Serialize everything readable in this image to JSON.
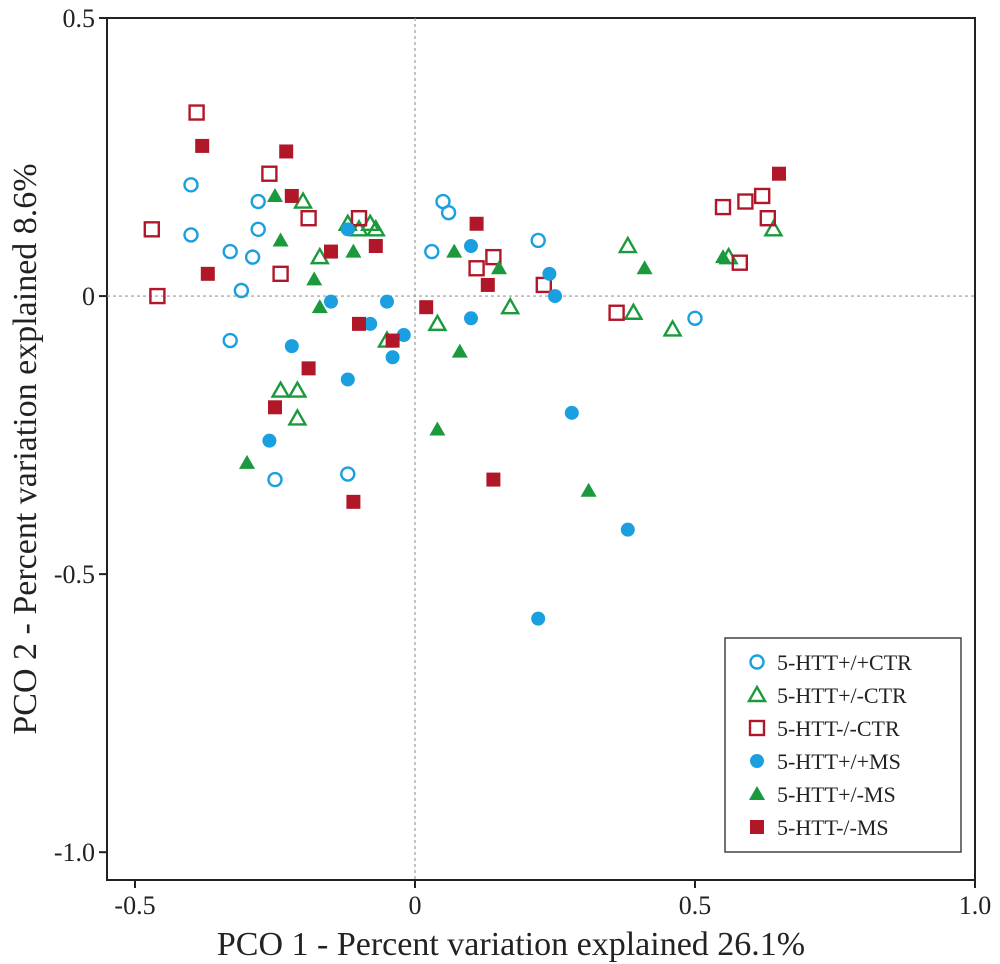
{
  "chart_data": {
    "type": "scatter",
    "title": "",
    "xlabel": "PCO 1 - Percent variation explained 26.1%",
    "ylabel": "PCO 2 - Percent variation explained 8.6%",
    "xlim": [
      -0.55,
      1.0
    ],
    "ylim": [
      -1.05,
      0.5
    ],
    "xticks": [
      -0.5,
      0,
      0.5,
      1.0
    ],
    "xtick_labels": [
      "-0.5",
      "0",
      "0.5",
      "1.0"
    ],
    "yticks": [
      0.5,
      0,
      -0.5,
      -1.0
    ],
    "ytick_labels": [
      "0.5",
      "0",
      "-0.5",
      "-1.0"
    ],
    "reference_lines": {
      "x": 0,
      "y": 0
    },
    "legend_position": "bottom-right",
    "series": [
      {
        "name": "5-HTT+/+CTR",
        "marker": "circle-open",
        "color": "#1aa0e0",
        "x": [
          -0.4,
          -0.4,
          -0.33,
          -0.31,
          -0.28,
          -0.28,
          -0.29,
          -0.33,
          -0.25,
          -0.12,
          0.05,
          0.06,
          0.03,
          0.22,
          0.5
        ],
        "y": [
          0.2,
          0.11,
          0.08,
          0.01,
          0.17,
          0.12,
          0.07,
          -0.08,
          -0.33,
          -0.32,
          0.17,
          0.15,
          0.08,
          0.1,
          -0.04
        ]
      },
      {
        "name": "5-HTT+/-CTR",
        "marker": "triangle-open",
        "color": "#1a9a3c",
        "x": [
          -0.2,
          -0.17,
          -0.12,
          -0.08,
          -0.1,
          -0.07,
          -0.05,
          -0.21,
          -0.24,
          -0.21,
          0.04,
          0.17,
          0.38,
          0.39,
          0.46,
          0.56,
          0.64
        ],
        "y": [
          0.17,
          0.07,
          0.13,
          0.13,
          0.12,
          0.12,
          -0.08,
          -0.17,
          -0.17,
          -0.22,
          -0.05,
          -0.02,
          0.09,
          -0.03,
          -0.06,
          0.07,
          0.12
        ]
      },
      {
        "name": "5-HTT-/-CTR",
        "marker": "square-open",
        "color": "#b0182a",
        "x": [
          -0.47,
          -0.46,
          -0.39,
          -0.26,
          -0.24,
          -0.19,
          -0.1,
          0.11,
          0.14,
          0.23,
          0.36,
          0.55,
          0.59,
          0.62,
          0.63,
          0.58
        ],
        "y": [
          0.12,
          0.0,
          0.33,
          0.22,
          0.04,
          0.14,
          0.14,
          0.05,
          0.07,
          0.02,
          -0.03,
          0.16,
          0.17,
          0.18,
          0.14,
          0.06
        ]
      },
      {
        "name": "5-HTT+/+MS",
        "marker": "circle-filled",
        "color": "#1aa0e0",
        "x": [
          -0.15,
          -0.22,
          -0.26,
          -0.12,
          -0.08,
          -0.05,
          -0.04,
          -0.02,
          0.1,
          0.1,
          0.24,
          0.25,
          0.28,
          0.38,
          0.22,
          -0.12
        ],
        "y": [
          -0.01,
          -0.09,
          -0.26,
          -0.15,
          -0.05,
          -0.01,
          -0.11,
          -0.07,
          0.09,
          -0.04,
          0.04,
          0.0,
          -0.21,
          -0.42,
          -0.58,
          0.12
        ]
      },
      {
        "name": "5-HTT+/-MS",
        "marker": "triangle-filled",
        "color": "#1a9a3c",
        "x": [
          -0.25,
          -0.24,
          -0.18,
          -0.17,
          -0.11,
          0.07,
          0.15,
          0.08,
          0.04,
          0.31,
          0.41,
          0.55,
          -0.3
        ],
        "y": [
          0.18,
          0.1,
          0.03,
          -0.02,
          0.08,
          0.08,
          0.05,
          -0.1,
          -0.24,
          -0.35,
          0.05,
          0.07,
          -0.3
        ]
      },
      {
        "name": "5-HTT-/-MS",
        "marker": "square-filled",
        "color": "#b0182a",
        "x": [
          -0.38,
          -0.37,
          -0.23,
          -0.22,
          -0.15,
          -0.07,
          -0.1,
          -0.04,
          0.02,
          0.11,
          0.13,
          0.14,
          -0.19,
          -0.25,
          -0.11,
          0.65
        ],
        "y": [
          0.27,
          0.04,
          0.26,
          0.18,
          0.08,
          0.09,
          -0.05,
          -0.08,
          -0.02,
          0.13,
          0.02,
          -0.33,
          -0.13,
          -0.2,
          -0.37,
          0.22
        ]
      }
    ]
  }
}
